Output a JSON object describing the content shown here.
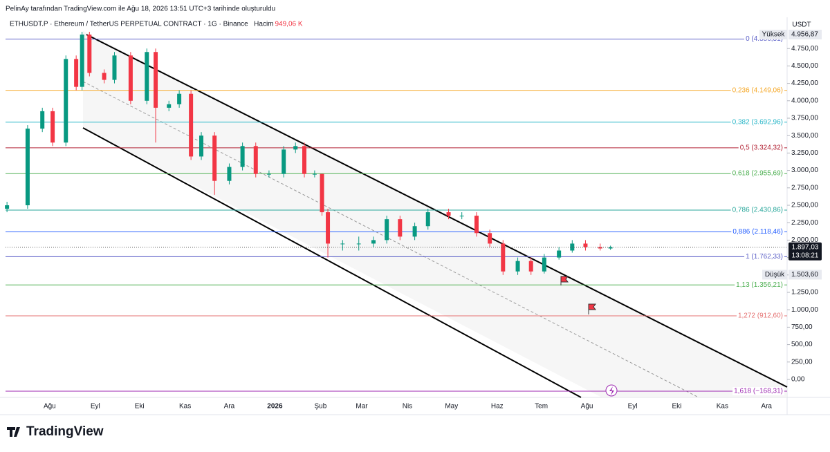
{
  "header": {
    "caption": "PelinAy tarafından TradingView.com ile Ağu 18, 2026 13:51 UTC+3 tarihinde oluşturuldu",
    "symbol": "ETHUSDT.P · Ethereum / TetherUS PERPETUAL CONTRACT · 1G · Binance",
    "volume_label": "Hacim",
    "volume": "949,06 K"
  },
  "chart_data": {
    "type": "candlestick",
    "x": [
      -29,
      -15,
      -5,
      2,
      11,
      18,
      22,
      27,
      37,
      44,
      55,
      66,
      72,
      81,
      88,
      96,
      103,
      112,
      122,
      131,
      140,
      149,
      159,
      167,
      173,
      180,
      185,
      189,
      199,
      210,
      220,
      229,
      238,
      248,
      257,
      271,
      280,
      290,
      299,
      308,
      318,
      327,
      336,
      346,
      355,
      364,
      374,
      381
    ],
    "open": [
      2450,
      2500,
      3600,
      3850,
      3400,
      4600,
      4200,
      4950,
      4400,
      4300,
      4650,
      4000,
      4700,
      3900,
      3950,
      4100,
      3200,
      3500,
      2850,
      3050,
      3350,
      2950,
      2950,
      3300,
      3350,
      2950,
      2950,
      2400,
      1950,
      1950,
      1950,
      2000,
      2300,
      2050,
      2200,
      2400,
      2350,
      2350,
      2100,
      1950,
      1550,
      1700,
      1550,
      1750,
      1850,
      1950,
      1900,
      1880
    ],
    "high": [
      2550,
      3650,
      3900,
      3900,
      4650,
      4650,
      4990,
      4990,
      4450,
      4700,
      4700,
      4750,
      4750,
      4000,
      4150,
      4150,
      3550,
      3550,
      3100,
      3400,
      3400,
      3000,
      3350,
      3400,
      3400,
      3000,
      2950,
      2450,
      2000,
      2050,
      2050,
      2350,
      2350,
      2250,
      2450,
      2450,
      2400,
      2400,
      2150,
      2000,
      1750,
      1750,
      1800,
      1900,
      2000,
      2000,
      1950,
      1920
    ],
    "low": [
      2400,
      2450,
      3550,
      3350,
      3350,
      4150,
      4150,
      4350,
      4250,
      4250,
      3950,
      3950,
      3400,
      3850,
      3900,
      3150,
      3150,
      2650,
      2800,
      3000,
      2900,
      2900,
      2900,
      3250,
      2900,
      2900,
      2350,
      1750,
      1850,
      1850,
      1900,
      1950,
      2000,
      2000,
      2150,
      2300,
      2300,
      2050,
      1900,
      1500,
      1500,
      1500,
      1520,
      1720,
      1820,
      1850,
      1850,
      1860
    ],
    "close": [
      2500,
      3600,
      3850,
      3400,
      4600,
      4200,
      4950,
      4400,
      4300,
      4650,
      4000,
      4700,
      3900,
      3950,
      4100,
      3200,
      3500,
      2850,
      3050,
      3350,
      2950,
      2950,
      3300,
      3350,
      2950,
      2950,
      2400,
      1950,
      1950,
      1950,
      2000,
      2300,
      2050,
      2200,
      2400,
      2350,
      2350,
      2100,
      1950,
      1550,
      1700,
      1550,
      1750,
      1850,
      1950,
      1900,
      1880,
      1897
    ],
    "up_color": "#089981",
    "down_color": "#f23645",
    "xlim": [
      -30,
      501
    ],
    "xticks": [
      {
        "value": 0,
        "label": "Ağu"
      },
      {
        "value": 31,
        "label": "Eyl"
      },
      {
        "value": 61,
        "label": "Eki"
      },
      {
        "value": 92,
        "label": "Kas"
      },
      {
        "value": 122,
        "label": "Ara"
      },
      {
        "value": 153,
        "label": "2026"
      },
      {
        "value": 184,
        "label": "Şub"
      },
      {
        "value": 212,
        "label": "Mar"
      },
      {
        "value": 243,
        "label": "Nis"
      },
      {
        "value": 273,
        "label": "May"
      },
      {
        "value": 304,
        "label": "Haz"
      },
      {
        "value": 334,
        "label": "Tem"
      },
      {
        "value": 365,
        "label": "Ağu"
      },
      {
        "value": 396,
        "label": "Eyl"
      },
      {
        "value": 426,
        "label": "Eki"
      },
      {
        "value": 457,
        "label": "Kas"
      },
      {
        "value": 487,
        "label": "Ara"
      }
    ],
    "ylim": [
      -258,
      5000
    ],
    "yticks": [
      {
        "value": 0,
        "label": "0,00"
      },
      {
        "value": 250,
        "label": "250,00"
      },
      {
        "value": 500,
        "label": "500,00"
      },
      {
        "value": 750,
        "label": "750,00"
      },
      {
        "value": 1000,
        "label": "1.000,00"
      },
      {
        "value": 1250,
        "label": "1.250,00"
      },
      {
        "value": 1500,
        "label": "1.500,00"
      },
      {
        "value": 1750,
        "label": "1.750,00"
      },
      {
        "value": 2000,
        "label": "2.000,00"
      },
      {
        "value": 2250,
        "label": "2.250,00"
      },
      {
        "value": 2500,
        "label": "2.500,00"
      },
      {
        "value": 2750,
        "label": "2.750,00"
      },
      {
        "value": 3000,
        "label": "3.000,00"
      },
      {
        "value": 3250,
        "label": "3.250,00"
      },
      {
        "value": 3500,
        "label": "3.500,00"
      },
      {
        "value": 3750,
        "label": "3.750,00"
      },
      {
        "value": 4000,
        "label": "4.000,00"
      },
      {
        "value": 4250,
        "label": "4.250,00"
      },
      {
        "value": 4500,
        "label": "4.500,00"
      },
      {
        "value": 4750,
        "label": "4.750,00"
      }
    ],
    "y_unit": "USDT",
    "fib_levels": [
      {
        "label": "0 (4.886,31)",
        "value": 4886.31,
        "color": "#5b5fc7"
      },
      {
        "label": "0,236 (4.149,06)",
        "value": 4149.06,
        "color": "#f5a623"
      },
      {
        "label": "0,382 (3.692,96)",
        "value": 3692.96,
        "color": "#26b5c7"
      },
      {
        "label": "0,5 (3.324,32)",
        "value": 3324.32,
        "color": "#b22234"
      },
      {
        "label": "0,618 (2.955,69)",
        "value": 2955.69,
        "color": "#4caf50"
      },
      {
        "label": "0,786 (2.430,86)",
        "value": 2430.86,
        "color": "#26a69a"
      },
      {
        "label": "0,886 (2.118,46)",
        "value": 2118.46,
        "color": "#2962ff"
      },
      {
        "label": "1 (1.762,33)",
        "value": 1762.33,
        "color": "#5b5fc7"
      },
      {
        "label": "1,13 (1.356,21)",
        "value": 1356.21,
        "color": "#4caf50"
      },
      {
        "label": "1,272 (912,60)",
        "value": 912.6,
        "color": "#e57373"
      },
      {
        "label": "1,618 (−168,31)",
        "value": -168.31,
        "color": "#9c27b0"
      }
    ],
    "last_price": {
      "value": 1897.03,
      "label": "1.897,03",
      "countdown": "13:08:21"
    },
    "high_marker": {
      "name": "Yüksek",
      "label": "4.956,87"
    },
    "low_marker": {
      "name": "Düşük",
      "value": 1503.6,
      "label": "1.503,60"
    }
  },
  "footer": {
    "brand": "TradingView"
  }
}
